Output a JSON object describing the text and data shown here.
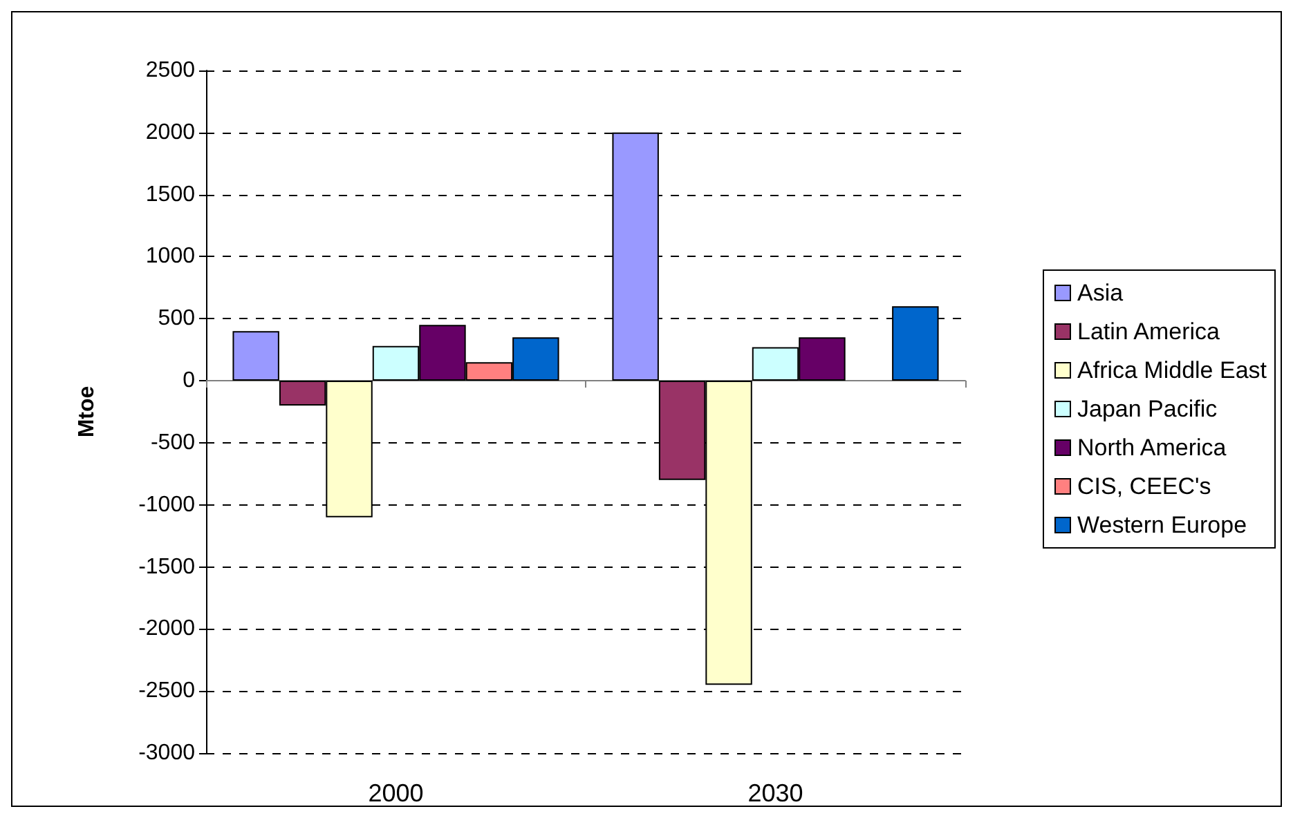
{
  "chart_data": {
    "type": "bar",
    "ylabel": "Mtoe",
    "categories": [
      "2000",
      "2030"
    ],
    "series": [
      {
        "name": "Asia",
        "color": "#9999ff",
        "values": [
          400,
          2000
        ]
      },
      {
        "name": "Latin America",
        "color": "#993366",
        "values": [
          -200,
          -800
        ]
      },
      {
        "name": "Africa Middle East",
        "color": "#ffffcc",
        "values": [
          -1100,
          -2450
        ]
      },
      {
        "name": "Japan Pacific",
        "color": "#ccffff",
        "values": [
          280,
          270
        ]
      },
      {
        "name": "North America",
        "color": "#660066",
        "values": [
          450,
          350
        ]
      },
      {
        "name": "CIS, CEEC's",
        "color": "#ff8080",
        "values": [
          150,
          null
        ]
      },
      {
        "name": "Western Europe",
        "color": "#0066cc",
        "values": [
          350,
          600
        ]
      }
    ],
    "ylim": [
      -3000,
      2500
    ],
    "yticks": [
      -3000,
      -2500,
      -2000,
      -1500,
      -1000,
      -500,
      0,
      500,
      1000,
      1500,
      2000,
      2500
    ],
    "grid": "y",
    "legend": "right"
  }
}
